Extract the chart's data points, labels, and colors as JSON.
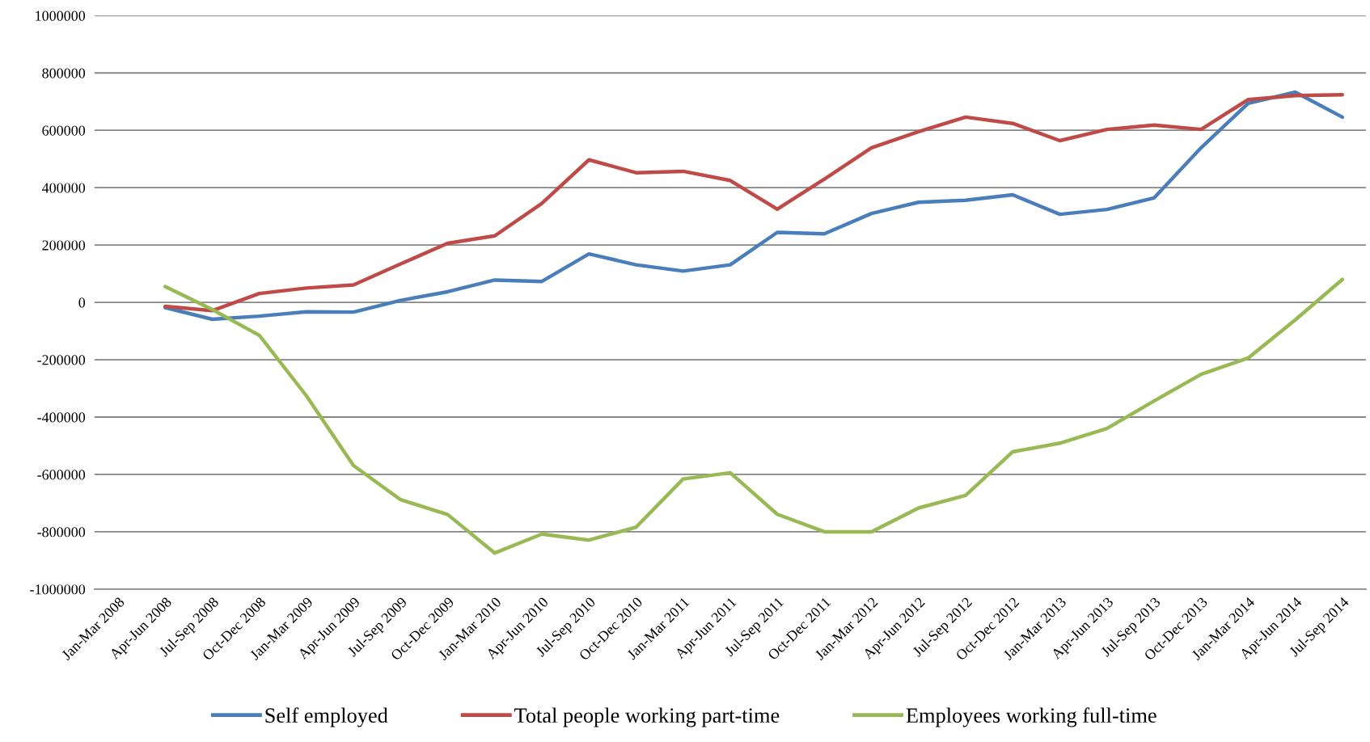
{
  "chart_data": {
    "type": "line",
    "categories": [
      "Jan-Mar 2008",
      "Apr-Jun 2008",
      "Jul-Sep 2008",
      "Oct-Dec 2008",
      "Jan-Mar 2009",
      "Apr-Jun 2009",
      "Jul-Sep 2009",
      "Oct-Dec 2009",
      "Jan-Mar 2010",
      "Apr-Jun 2010",
      "Jul-Sep 2010",
      "Oct-Dec 2010",
      "Jan-Mar 2011",
      "Apr-Jun 2011",
      "Jul-Sep 2011",
      "Oct-Dec 2011",
      "Jan-Mar 2012",
      "Apr-Jun 2012",
      "Jul-Sep 2012",
      "Oct-Dec 2012",
      "Jan-Mar 2013",
      "Apr-Jun 2013",
      "Jul-Sep 2013",
      "Oct-Dec 2013",
      "Jan-Mar 2014",
      "Apr-Jun 2014",
      "Jul-Sep 2014"
    ],
    "series": [
      {
        "name": "Self employed",
        "color": "#4a7ebb",
        "values": [
          null,
          -18000,
          -59000,
          -48000,
          -33000,
          -34000,
          7000,
          37000,
          78000,
          73000,
          169000,
          131000,
          109000,
          131000,
          244000,
          239000,
          310000,
          349000,
          356000,
          375000,
          307000,
          324000,
          364000,
          539000,
          694000,
          733000,
          646000
        ]
      },
      {
        "name": "Total people working part-time",
        "color": "#be4b48",
        "values": [
          null,
          -14000,
          -29000,
          31000,
          50000,
          61000,
          134000,
          206000,
          232000,
          345000,
          497000,
          452000,
          457000,
          425000,
          325000,
          430000,
          539000,
          595000,
          646000,
          624000,
          564000,
          603000,
          618000,
          603000,
          707000,
          721000,
          724000
        ]
      },
      {
        "name": "Employees working full-time",
        "color": "#98b954",
        "values": [
          null,
          55000,
          -25000,
          -115000,
          -326000,
          -569000,
          -688000,
          -740000,
          -874000,
          -808000,
          -829000,
          -784000,
          -616000,
          -594000,
          -739000,
          -800000,
          -800000,
          -717000,
          -673000,
          -521000,
          -491000,
          -440000,
          -344000,
          -251000,
          -194000,
          -61000,
          80000
        ]
      }
    ],
    "ylim": [
      -1000000,
      1000000
    ],
    "yticks": [
      -1000000,
      -800000,
      -600000,
      -400000,
      -200000,
      0,
      200000,
      400000,
      600000,
      800000,
      1000000
    ],
    "grid": "y",
    "legend": "bottom"
  }
}
